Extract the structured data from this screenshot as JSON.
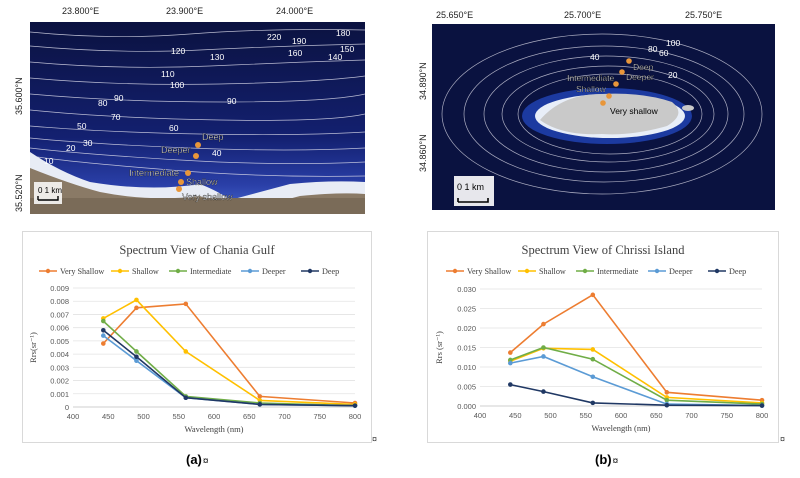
{
  "figure": {
    "map_a": {
      "lon_ticks": [
        "23.800°E",
        "23.900°E",
        "24.000°E"
      ],
      "lat_ticks": [
        "35.600°N",
        "35.520°N"
      ],
      "scale": "0  1 km",
      "contour_labels": [
        "220",
        "190",
        "180",
        "150",
        "140",
        "160",
        "120",
        "130",
        "110",
        "100",
        "90",
        "90",
        "80",
        "70",
        "60",
        "50",
        "40",
        "30",
        "20",
        "10"
      ],
      "stations": [
        "Deep",
        "Deeper",
        "Intermediate",
        "Shallow",
        "Very shallow"
      ]
    },
    "map_b": {
      "lon_ticks": [
        "25.650°E",
        "25.700°E",
        "25.750°E"
      ],
      "lat_ticks": [
        "34.890°N",
        "34.860°N"
      ],
      "scale": "0   1 km",
      "contour_labels": [
        "100",
        "80",
        "60",
        "40",
        "20"
      ],
      "stations": [
        "Deep",
        "Deeper",
        "Intermediate",
        "Shallow",
        "Very shallow"
      ]
    },
    "caption_a": "(a)",
    "caption_b": "(b)",
    "pilcrow": "¤",
    "colors": {
      "very_shallow": "#ed7d31",
      "shallow": "#ffc000",
      "intermediate": "#70ad47",
      "deeper": "#5b9bd5",
      "deep": "#203864",
      "sea": "#0a1240",
      "land": "#c9c9c9",
      "station": "#e8963a"
    }
  },
  "chart_data": [
    {
      "type": "line",
      "title": "Spectrum View of Chania Gulf",
      "xlabel": "Wavelength (nm)",
      "ylabel": "Rrs(sr⁻¹)",
      "x": [
        443,
        490,
        560,
        665,
        800
      ],
      "xlim": [
        400,
        800
      ],
      "xticks": [
        "400",
        "450",
        "500",
        "550",
        "600",
        "650",
        "700",
        "750",
        "800"
      ],
      "ylim": [
        0,
        0.009
      ],
      "yticks": [
        "0",
        "0.001",
        "0.002",
        "0.003",
        "0.004",
        "0.005",
        "0.006",
        "0.007",
        "0.008",
        "0.009"
      ],
      "grid": true,
      "legend": "top",
      "series": [
        {
          "name": "Very Shallow",
          "color": "#ed7d31",
          "values": [
            0.0048,
            0.0075,
            0.0078,
            0.0008,
            0.0003
          ]
        },
        {
          "name": "Shallow",
          "color": "#ffc000",
          "values": [
            0.0067,
            0.0081,
            0.0042,
            0.0005,
            0.0002
          ]
        },
        {
          "name": "Intermediate",
          "color": "#70ad47",
          "values": [
            0.0065,
            0.0042,
            0.0008,
            0.0003,
            0.0001
          ]
        },
        {
          "name": "Deeper",
          "color": "#5b9bd5",
          "values": [
            0.0054,
            0.0035,
            0.0007,
            0.0002,
            0.0001
          ]
        },
        {
          "name": "Deep",
          "color": "#203864",
          "values": [
            0.0058,
            0.0038,
            0.0007,
            0.0002,
            0.0001
          ]
        }
      ]
    },
    {
      "type": "line",
      "title": "Spectrum View of Chrissi Island",
      "xlabel": "Wavelength (nm)",
      "ylabel": "Rrs (sr⁻¹)",
      "x": [
        443,
        490,
        560,
        665,
        800
      ],
      "xlim": [
        400,
        800
      ],
      "xticks": [
        "400",
        "450",
        "500",
        "550",
        "600",
        "650",
        "700",
        "750",
        "800"
      ],
      "ylim": [
        0,
        0.03
      ],
      "yticks": [
        "0.000",
        "0.005",
        "0.010",
        "0.015",
        "0.020",
        "0.025",
        "0.030"
      ],
      "grid": true,
      "legend": "top",
      "series": [
        {
          "name": "Very Shallow",
          "color": "#ed7d31",
          "values": [
            0.0137,
            0.021,
            0.0285,
            0.0035,
            0.0015
          ]
        },
        {
          "name": "Shallow",
          "color": "#ffc000",
          "values": [
            0.0115,
            0.0148,
            0.0145,
            0.0022,
            0.0008
          ]
        },
        {
          "name": "Intermediate",
          "color": "#70ad47",
          "values": [
            0.0118,
            0.015,
            0.012,
            0.0015,
            0.0005
          ]
        },
        {
          "name": "Deeper",
          "color": "#5b9bd5",
          "values": [
            0.011,
            0.0127,
            0.0075,
            0.0005,
            0.0001
          ]
        },
        {
          "name": "Deep",
          "color": "#203864",
          "values": [
            0.0055,
            0.0037,
            0.0008,
            0.0002,
            0.0001
          ]
        }
      ]
    }
  ]
}
